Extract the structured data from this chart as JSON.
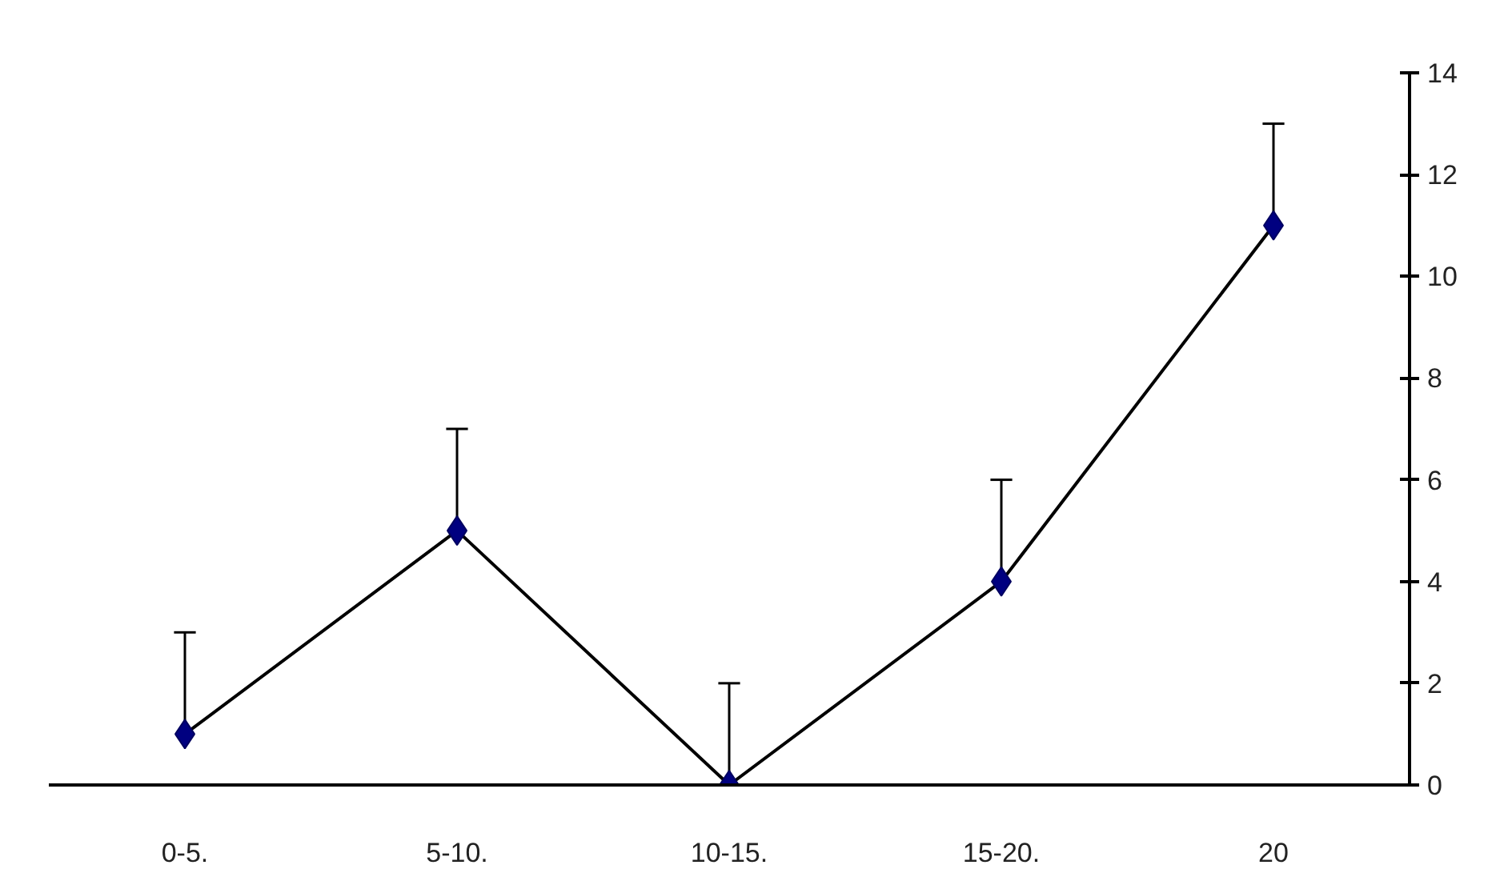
{
  "chart_data": {
    "type": "line",
    "categories": [
      "0-5.",
      "5-10.",
      "10-15.",
      "15-20.",
      "20"
    ],
    "series": [
      {
        "color": "#000000",
        "values": [
          1,
          5,
          0,
          4,
          11
        ],
        "errors": [
          [
            1,
            3
          ],
          [
            5,
            7
          ],
          [
            0,
            2
          ],
          [
            4,
            6
          ],
          [
            11,
            13
          ]
        ]
      }
    ],
    "marker": "diamond",
    "line_style": "solid",
    "ylim": [
      0,
      14
    ],
    "yticks": [
      0,
      2,
      4,
      6,
      8,
      10,
      12,
      14
    ],
    "grid": false
  }
}
